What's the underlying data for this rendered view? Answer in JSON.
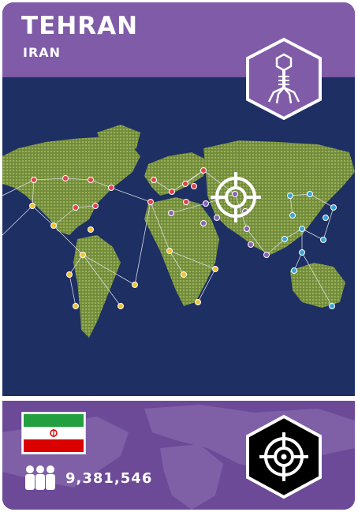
{
  "card": {
    "city": "TEHRAN",
    "country": "IRAN",
    "population": "9,381,546",
    "header_icon": "bacteriophage-virus-icon",
    "badge_icon": "crosshair-target-icon",
    "target_marker_icon": "crosshair-target-icon",
    "flag": "iran-flag-icon",
    "population_icon": "people-group-icon"
  },
  "colors": {
    "header": "#7f5ba8",
    "footer": "#6c4a98",
    "map_ocean": "#1d2f63",
    "land": "#6f8a3a",
    "red_city": "#e0444e",
    "yellow_city": "#f3c233",
    "blue_city": "#3aa5d6",
    "purple_city": "#8a63b8"
  }
}
